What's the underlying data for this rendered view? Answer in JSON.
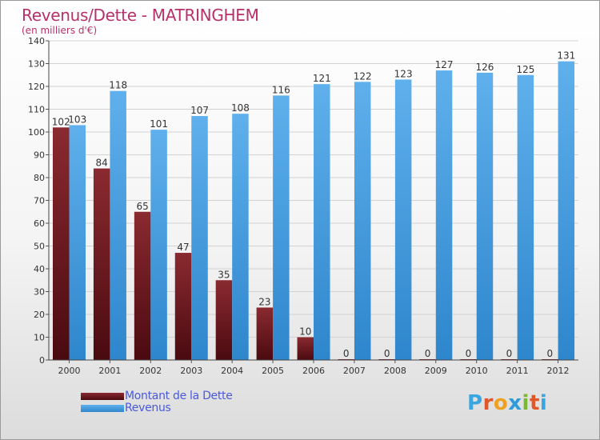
{
  "title": "Revenus/Dette - MATRINGHEM",
  "subtitle": "(en milliers d'€)",
  "logo": {
    "letters": [
      "P",
      "r",
      "o",
      "x",
      "i",
      "t",
      "i"
    ],
    "colors": [
      "#3aa6e0",
      "#e0572a",
      "#f0a020",
      "#2e9ad8",
      "#7ab832",
      "#e0572a",
      "#3aa6e0"
    ]
  },
  "chart_data": {
    "type": "bar",
    "categories": [
      "2000",
      "2001",
      "2002",
      "2003",
      "2004",
      "2005",
      "2006",
      "2007",
      "2008",
      "2009",
      "2010",
      "2011",
      "2012"
    ],
    "series": [
      {
        "name": "Montant de la Dette",
        "color": "#7a1e24",
        "values": [
          102,
          84,
          65,
          47,
          35,
          23,
          10,
          0,
          0,
          0,
          0,
          0,
          0
        ],
        "labels": [
          "102",
          "84",
          "65",
          "47",
          "35",
          "23",
          "10",
          "0",
          "0",
          "0",
          "0",
          "0",
          "0"
        ]
      },
      {
        "name": "Revenus",
        "color": "#3a94d8",
        "values": [
          103,
          118,
          101,
          107,
          108,
          116,
          121,
          122,
          123,
          127,
          126,
          125,
          131
        ],
        "labels": [
          "103",
          "118",
          "101",
          "107",
          "108",
          "116",
          "121",
          "122",
          "123",
          "127",
          "126",
          "125",
          "131"
        ]
      }
    ],
    "ylim": [
      0,
      140
    ],
    "yticks": [
      "0",
      "10",
      "20",
      "30",
      "40",
      "50",
      "60",
      "70",
      "80",
      "90",
      "100",
      "110",
      "120",
      "130",
      "140"
    ],
    "grid": true,
    "legend_position": "bottom-left"
  }
}
